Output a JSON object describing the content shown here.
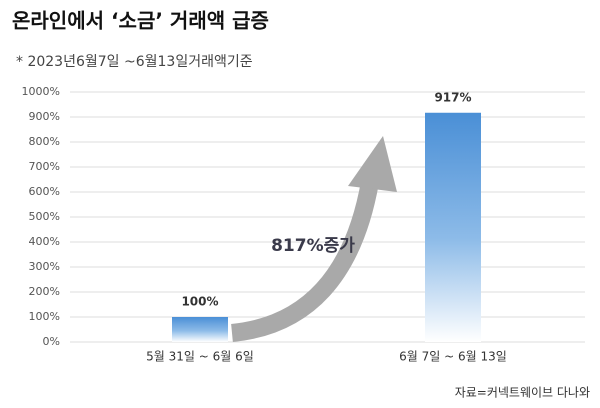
{
  "chart_data": {
    "type": "bar",
    "title": "온라인에서 ‘소금’ 거래액 급증",
    "subtitle": "* 2023년6월7일 ~6월13일거래액기준",
    "categories": [
      "5월 31일 ~ 6월 6일",
      "6월 7일 ~ 6월 13일"
    ],
    "values": [
      100,
      917
    ],
    "value_labels": [
      "100%",
      "917%"
    ],
    "color": "#4a8fd6",
    "ylim": [
      0,
      1000
    ],
    "yticks": [
      {
        "value": 0,
        "label": "0%"
      },
      {
        "value": 100,
        "label": "100%"
      },
      {
        "value": 200,
        "label": "200%"
      },
      {
        "value": 300,
        "label": "300%"
      },
      {
        "value": 400,
        "label": "400%"
      },
      {
        "value": 500,
        "label": "500%"
      },
      {
        "value": 600,
        "label": "600%"
      },
      {
        "value": 700,
        "label": "700%"
      },
      {
        "value": 800,
        "label": "800%"
      },
      {
        "value": 900,
        "label": "900%"
      },
      {
        "value": 1000,
        "label": "1000%"
      }
    ],
    "grid": true,
    "annotation": "817%증가",
    "source": "자료=커넥트웨이브 다나와"
  }
}
